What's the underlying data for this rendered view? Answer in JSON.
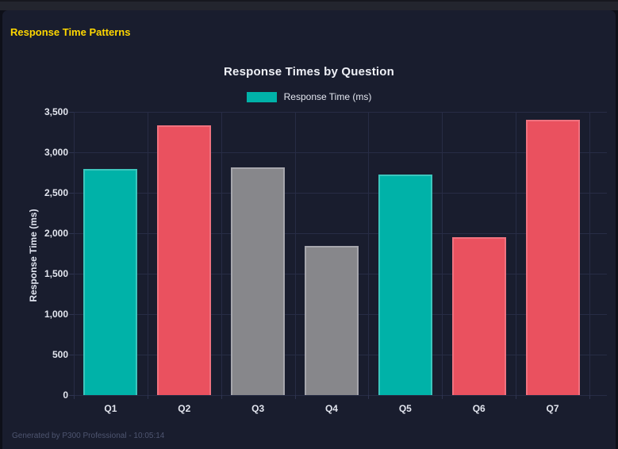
{
  "header": {
    "title": "Response Time Patterns",
    "title_color": "#ffd700"
  },
  "footer": {
    "text": "Generated by P300 Professional - 10:05:14"
  },
  "chart_data": {
    "type": "bar",
    "title": "Response Times by Question",
    "categories": [
      "Q1",
      "Q2",
      "Q3",
      "Q4",
      "Q5",
      "Q6",
      "Q7"
    ],
    "values": [
      2790,
      3335,
      2810,
      1845,
      2725,
      1950,
      3400
    ],
    "bar_colors": [
      "#00b2a8",
      "#ea515f",
      "#87878b",
      "#87878b",
      "#00b2a8",
      "#ea515f",
      "#ea515f"
    ],
    "bar_border_colors": [
      "#3cc6bd",
      "#f0727f",
      "#a6a6ac",
      "#a6a6ac",
      "#3cc6bd",
      "#f0727f",
      "#f0727f"
    ],
    "xlabel": "",
    "ylabel": "Response Time (ms)",
    "ylim": [
      0,
      3500
    ],
    "ytick_step": 500,
    "ytick_labels": [
      "0",
      "500",
      "1,000",
      "1,500",
      "2,000",
      "2,500",
      "3,000",
      "3,500"
    ],
    "legend": [
      {
        "label": "Response Time (ms)",
        "color": "#00b2a8"
      }
    ],
    "legend_position": "top",
    "grid": true,
    "grid_color": "#272c45",
    "background_color": "#191d2e",
    "text_color": "#e2e5ee"
  }
}
